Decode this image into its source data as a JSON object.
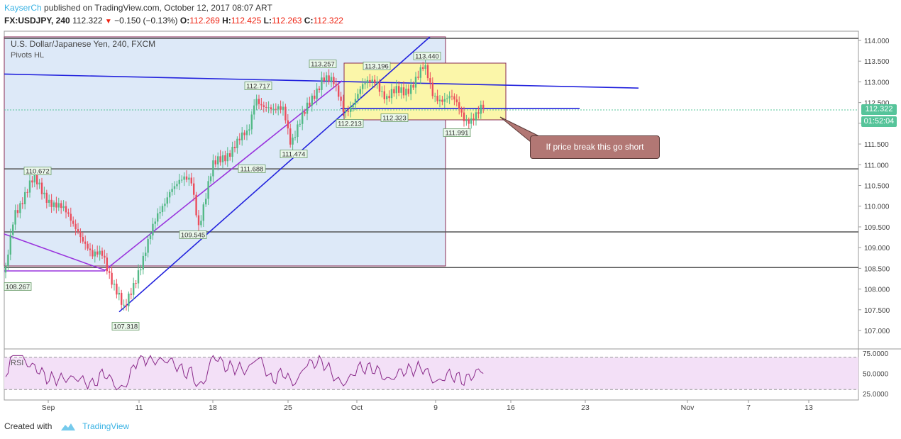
{
  "header": {
    "author": "KayserCh",
    "published": "published on TradingView.com, October 12, 2017 08:07 ART",
    "symbol": "FX:USDJPY, 240",
    "last": "112.322",
    "change": "−0.150 (−0.13%)",
    "o_label": "O:",
    "o": "112.269",
    "h_label": "H:",
    "h": "112.425",
    "l_label": "L:",
    "l": "112.263",
    "c_label": "C:",
    "c": "112.322"
  },
  "chart_data": {
    "type": "candlestick",
    "title": "U.S. Dollar/Japanese Yen, 240, FXCM",
    "indicator": "Pivots HL",
    "x_ticks": [
      "Sep",
      "11",
      "18",
      "25",
      "Oct",
      "9",
      "16",
      "23",
      "Nov",
      "7",
      "13"
    ],
    "y_ticks": [
      "114.000",
      "113.500",
      "113.000",
      "112.500",
      "112.000",
      "111.500",
      "111.000",
      "110.500",
      "110.000",
      "109.500",
      "109.000",
      "108.500",
      "108.000",
      "107.500",
      "107.000"
    ],
    "ylim": [
      106.75,
      114.2
    ],
    "current_price": "112.322",
    "countdown": "01:52:04",
    "pivot_labels": [
      "108.267",
      "110.672",
      "107.318",
      "109.545",
      "111.688",
      "112.717",
      "111.474",
      "113.257",
      "112.213",
      "113.196",
      "112.323",
      "113.440",
      "111.991"
    ],
    "horizontal_levels": [
      114.05,
      110.9,
      109.38,
      108.52
    ],
    "rsi": {
      "label": "RSI",
      "y_ticks": [
        "75.0000",
        "50.0000",
        "25.0000"
      ],
      "upper_band": 70,
      "lower_band": 30
    },
    "annotation": "If price break this go short"
  },
  "footer": {
    "created_with": "Created with",
    "brand": "TradingView"
  },
  "colors": {
    "up": "#53b987",
    "down": "#eb4d5c",
    "blue_line": "#2222dd",
    "purple_line": "#9933dd",
    "rect_blue": "#dde9f8",
    "rect_yellow": "#fbf6a9",
    "price_badge": "#56c49a",
    "callout": "#b27774"
  }
}
